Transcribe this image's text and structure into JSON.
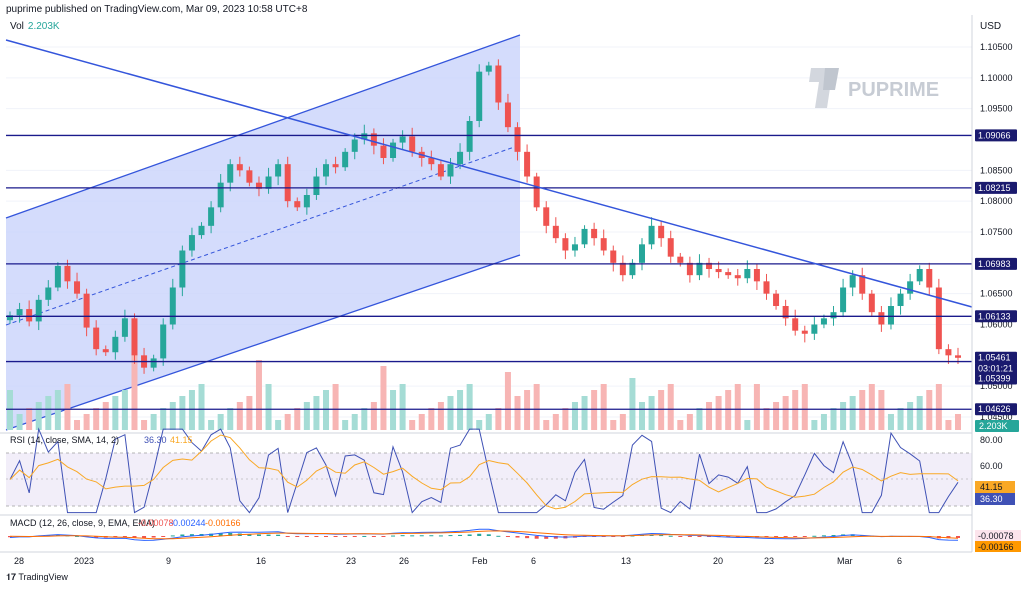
{
  "header": {
    "text": "puprime published on TradingView.com, Mar 09, 2023 10:58 UTC+8",
    "currency": "USD",
    "footer": "TradingView"
  },
  "brand": "PUPRIME",
  "volume": {
    "label": "Vol",
    "value": "2.203K",
    "tag": "2.203K"
  },
  "rsi": {
    "label": "RSI (14, close, SMA, 14, 2)",
    "value1": "36.30",
    "value2": "41.15",
    "ticks": [
      "80.00",
      "60.00"
    ],
    "tags": [
      "41.15",
      "36.30"
    ]
  },
  "macd": {
    "label": "MACD (12, 26, close, 9, EMA, EMA)",
    "v1": "-0.00078",
    "v2": "-0.00244",
    "v3": "-0.00166",
    "tags": [
      "-0.00078",
      "-0.00166"
    ]
  },
  "chart_data": {
    "type": "candlestick",
    "title": "",
    "y_ticks": [
      "1.10500",
      "1.10000",
      "1.09500",
      "1.08500",
      "1.08000",
      "1.07500",
      "1.06500",
      "1.06000",
      "1.05000",
      "1.04500"
    ],
    "x_ticks": [
      "28",
      "2023",
      "9",
      "16",
      "23",
      "26",
      "Feb",
      "6",
      "13",
      "20",
      "23",
      "Mar",
      "6"
    ],
    "price_tags": [
      {
        "label": "1.09066",
        "color": "#1a1a6e"
      },
      {
        "label": "1.08215",
        "color": "#1a1a6e"
      },
      {
        "label": "1.06983",
        "color": "#1a1a6e"
      },
      {
        "label": "1.06133",
        "color": "#1a1a6e"
      },
      {
        "label": "1.05461",
        "color": "#1a1a6e"
      },
      {
        "label": "03:01:21",
        "color": "#1a1a6e"
      },
      {
        "label": "1.05399",
        "color": "#1a1a6e"
      },
      {
        "label": "1.04626",
        "color": "#1a1a6e"
      }
    ],
    "horizontal_levels": [
      1.09066,
      1.08215,
      1.06983,
      1.06133,
      1.05399,
      1.04626
    ],
    "close_series": [
      1.0615,
      1.0625,
      1.0605,
      1.064,
      1.066,
      1.0695,
      1.067,
      1.065,
      1.0595,
      1.056,
      1.0555,
      1.058,
      1.061,
      1.055,
      1.053,
      1.0545,
      1.06,
      1.066,
      1.072,
      1.0745,
      1.076,
      1.079,
      1.083,
      1.086,
      1.085,
      1.083,
      1.082,
      1.084,
      1.086,
      1.08,
      1.079,
      1.081,
      1.084,
      1.086,
      1.0855,
      1.088,
      1.09,
      1.091,
      1.089,
      1.087,
      1.0895,
      1.0905,
      1.088,
      1.087,
      1.086,
      1.084,
      1.086,
      1.088,
      1.093,
      1.101,
      1.102,
      1.096,
      1.092,
      1.088,
      1.084,
      1.079,
      1.076,
      1.074,
      1.072,
      1.073,
      1.0755,
      1.074,
      1.072,
      1.07,
      1.068,
      1.07,
      1.073,
      1.076,
      1.074,
      1.071,
      1.07,
      1.068,
      1.07,
      1.069,
      1.0685,
      1.068,
      1.0675,
      1.069,
      1.067,
      1.065,
      1.063,
      1.061,
      1.059,
      1.0585,
      1.06,
      1.061,
      1.062,
      1.066,
      1.068,
      1.065,
      1.062,
      1.06,
      1.063,
      1.065,
      1.067,
      1.069,
      1.066,
      1.056,
      1.055,
      1.0546
    ]
  }
}
